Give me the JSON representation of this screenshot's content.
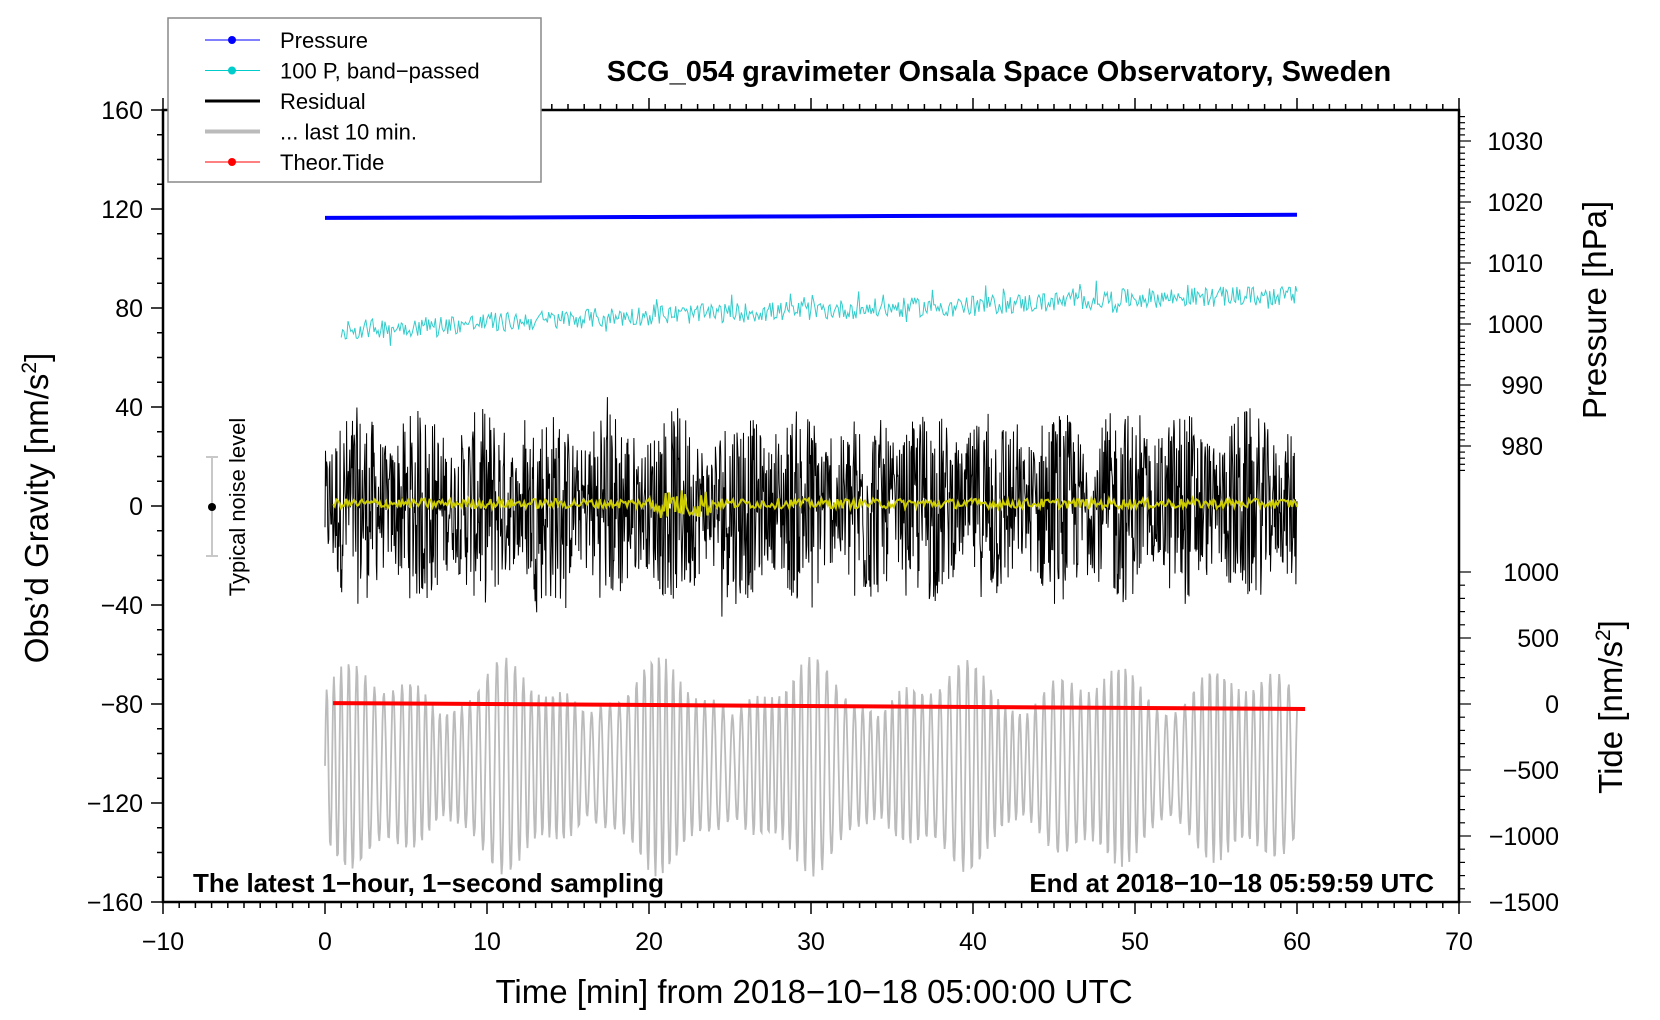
{
  "chart_data": {
    "type": "line",
    "title": "SCG_054 gravimeter Onsala Space Observatory, Sweden",
    "xlabel": "Time [min] from 2018−10−18 05:00:00 UTC",
    "ylabel_left": "Obs’d Gravity [nm/s",
    "ylabel_left_sup": "2",
    "ylabel_left_end": "]",
    "ylabel_right_pressure": "Pressure [hPa]",
    "ylabel_right_tide": "Tide [nm/s",
    "ylabel_right_tide_sup": "2",
    "ylabel_right_tide_end": "]",
    "xlim": [
      -10,
      70
    ],
    "ylim_left": [
      -160,
      160
    ],
    "ylim_pressure": [
      975,
      1035
    ],
    "ylim_tide": [
      -1500,
      1000
    ],
    "x_ticks": [
      {
        "v": -10,
        "t": "−10"
      },
      {
        "v": 0,
        "t": "0"
      },
      {
        "v": 10,
        "t": "10"
      },
      {
        "v": 20,
        "t": "20"
      },
      {
        "v": 30,
        "t": "30"
      },
      {
        "v": 40,
        "t": "40"
      },
      {
        "v": 50,
        "t": "50"
      },
      {
        "v": 60,
        "t": "60"
      },
      {
        "v": 70,
        "t": "70"
      }
    ],
    "y_ticks_left": [
      {
        "v": 160,
        "t": "160"
      },
      {
        "v": 120,
        "t": "120"
      },
      {
        "v": 80,
        "t": "80"
      },
      {
        "v": 40,
        "t": "40"
      },
      {
        "v": 0,
        "t": "0"
      },
      {
        "v": -40,
        "t": "−40"
      },
      {
        "v": -80,
        "t": "−80"
      },
      {
        "v": -120,
        "t": "−120"
      },
      {
        "v": -160,
        "t": "−160"
      }
    ],
    "y_ticks_pressure": [
      {
        "v": 1030,
        "t": "1030"
      },
      {
        "v": 1020,
        "t": "1020"
      },
      {
        "v": 1010,
        "t": "1010"
      },
      {
        "v": 1000,
        "t": "1000"
      },
      {
        "v": 990,
        "t": "990"
      },
      {
        "v": 980,
        "t": "980"
      }
    ],
    "y_ticks_tide": [
      {
        "v": 1000,
        "t": "1000"
      },
      {
        "v": 500,
        "t": "500"
      },
      {
        "v": 0,
        "t": "0"
      },
      {
        "v": -500,
        "t": "−500"
      },
      {
        "v": -1000,
        "t": "−1000"
      },
      {
        "v": -1500,
        "t": "−1500"
      }
    ],
    "legend_position": "top-left",
    "legend": [
      {
        "label": "Pressure",
        "color": "#0000ff",
        "marker": true,
        "width": 1
      },
      {
        "label": "100 P, band−passed",
        "color": "#00cccc",
        "marker": true,
        "width": 1
      },
      {
        "label": "Residual",
        "color": "#000000",
        "marker": false,
        "width": 3
      },
      {
        "label": "... last 10 min.",
        "color": "#bbbbbb",
        "marker": false,
        "width": 4
      },
      {
        "label": "Theor.Tide",
        "color": "#ff0000",
        "marker": true,
        "width": 1
      }
    ],
    "series": {
      "pressure": {
        "axis": "pressure",
        "unit": "hPa",
        "color": "#0000ff",
        "x": [
          0,
          10,
          20,
          30,
          40,
          50,
          60
        ],
        "values": [
          1017.4,
          1017.45,
          1017.55,
          1017.65,
          1017.75,
          1017.8,
          1017.9
        ]
      },
      "pressure_bandpassed": {
        "axis": "left",
        "color": "#33cccc",
        "x": [
          1,
          10,
          20,
          30,
          40,
          50,
          60
        ],
        "mean": [
          71,
          74,
          77,
          79,
          81,
          84,
          85
        ],
        "noise_amplitude": 4
      },
      "residual": {
        "axis": "left",
        "color": "#000000",
        "x_range": [
          0,
          60
        ],
        "mean": 0,
        "noise_amplitude": 40
      },
      "residual_filtered": {
        "axis": "left",
        "color": "#cccc00",
        "x_range": [
          0.5,
          60
        ],
        "mean": 1,
        "noise_amplitude": 2
      },
      "last_10_min": {
        "axis": "left",
        "color": "#bbbbbb",
        "x_range": [
          0,
          60
        ],
        "offset": -105,
        "amplitude": 45
      },
      "theor_tide": {
        "axis": "tide",
        "color": "#ff0000",
        "x": [
          0.5,
          60.5
        ],
        "values": [
          7,
          -38
        ]
      }
    },
    "noise_bar": {
      "label": "Typical noise level",
      "x": -7,
      "center": 0,
      "half_range": 20
    },
    "annotation_left": "The latest 1−hour, 1−second sampling",
    "annotation_right": "End at 2018−10−18 05:59:59 UTC"
  }
}
